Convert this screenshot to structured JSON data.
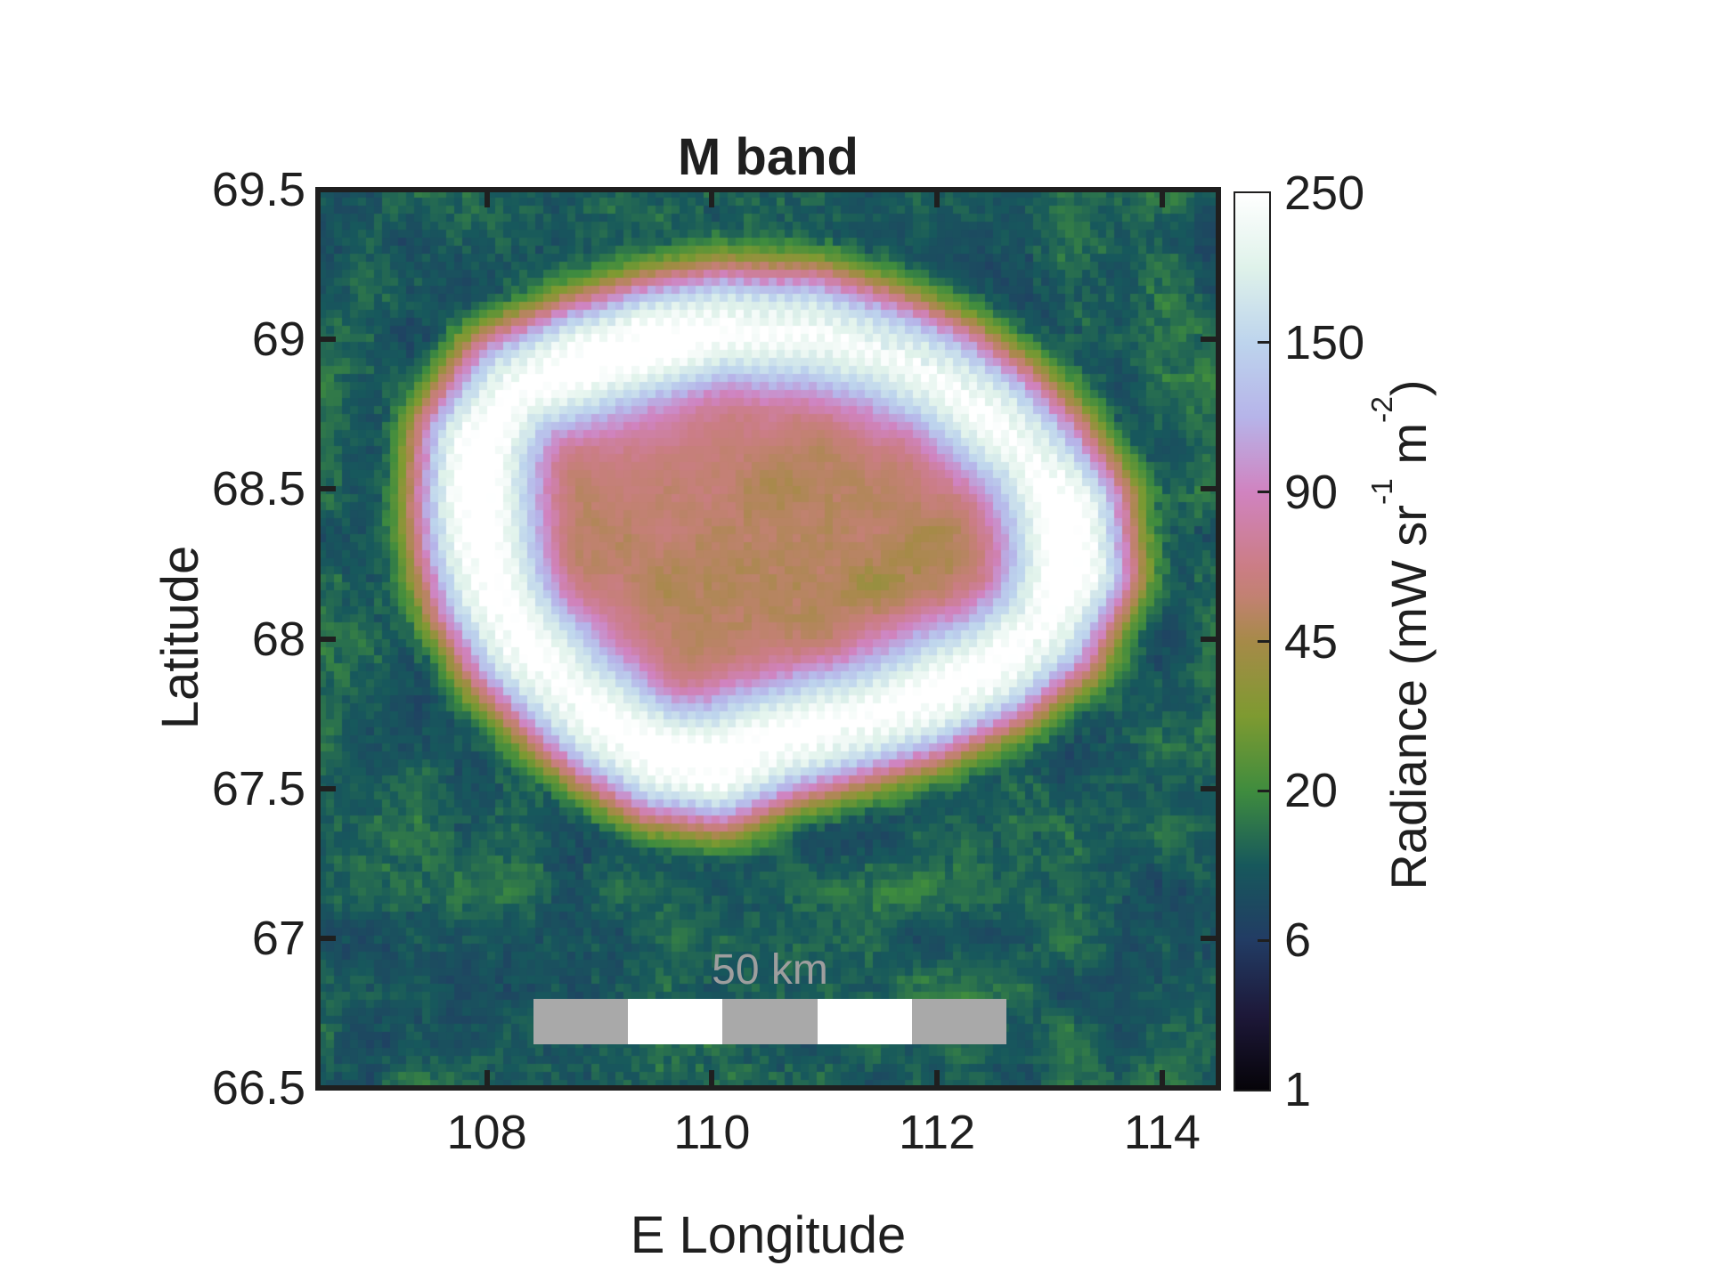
{
  "figure": {
    "background": "#ffffff"
  },
  "chart_data": {
    "type": "heatmap",
    "title": "M band",
    "xlabel": "E Longitude",
    "ylabel": "Latitude",
    "xlim": [
      106.5,
      114.5
    ],
    "ylim": [
      66.5,
      69.5
    ],
    "x_tick_values": [
      108,
      110,
      112,
      114
    ],
    "x_tick_labels": [
      "108",
      "110",
      "112",
      "114"
    ],
    "y_tick_values": [
      66.5,
      67,
      67.5,
      68,
      68.5,
      69,
      69.5
    ],
    "y_tick_labels": [
      "66.5",
      "67",
      "67.5",
      "68",
      "68.5",
      "69",
      "69.5"
    ],
    "colorbar": {
      "tick_values": [
        1,
        6,
        20,
        45,
        90,
        150,
        250
      ],
      "tick_labels": [
        "1",
        "6",
        "20",
        "45",
        "90",
        "150",
        "250"
      ],
      "scale": "nonlinear-even-tick-spacing",
      "label_parts": {
        "p1": "Radiance (mW sr",
        "s1": "-1",
        "p2": " m",
        "s2": "-2",
        "p3": ")"
      }
    },
    "colormap": [
      {
        "p": 0.0,
        "c": "#060409"
      },
      {
        "p": 0.083,
        "c": "#1d1839"
      },
      {
        "p": 0.167,
        "c": "#223c64"
      },
      {
        "p": 0.25,
        "c": "#17585c"
      },
      {
        "p": 0.333,
        "c": "#3f8c3e"
      },
      {
        "p": 0.417,
        "c": "#7e9a31"
      },
      {
        "p": 0.5,
        "c": "#a68a48"
      },
      {
        "p": 0.55,
        "c": "#c28172"
      },
      {
        "p": 0.583,
        "c": "#cb7d85"
      },
      {
        "p": 0.667,
        "c": "#d083c0"
      },
      {
        "p": 0.75,
        "c": "#b6b4e9"
      },
      {
        "p": 0.833,
        "c": "#bdd4ed"
      },
      {
        "p": 0.917,
        "c": "#dff2ea"
      },
      {
        "p": 1.0,
        "c": "#ffffff"
      }
    ],
    "field": {
      "grid_n": 112,
      "seed": 1337,
      "lon_compression": 0.374,
      "background": {
        "base": 14,
        "low_amp": 4.5,
        "fine_amp": 3.0,
        "stripe_amp": 1.6
      },
      "interior": {
        "base": 50,
        "center_boost": 8,
        "center_lon": 109.9,
        "center_lat": 68.5,
        "low_amp": 9,
        "fine_amp": 5,
        "stripe_amp": 1.5
      },
      "rim_sigma_out": 0.15,
      "rim_sigma_in": 0.19,
      "moat": {
        "amp": 6.5,
        "dist": 0.27,
        "sigma": 0.11
      },
      "rim_peak_radiance": 250
    },
    "rim_polygon": [
      [
        107.88,
        68.65,
        250
      ],
      [
        108.21,
        68.85,
        215
      ],
      [
        108.82,
        68.94,
        245
      ],
      [
        109.43,
        69.01,
        250
      ],
      [
        110.09,
        69.06,
        215
      ],
      [
        110.86,
        69.05,
        205
      ],
      [
        111.52,
        68.98,
        185
      ],
      [
        112.08,
        68.88,
        195
      ],
      [
        112.54,
        68.75,
        215
      ],
      [
        112.89,
        68.62,
        200
      ],
      [
        113.2,
        68.43,
        250
      ],
      [
        113.25,
        68.23,
        255
      ],
      [
        113.0,
        68.02,
        215
      ],
      [
        112.54,
        67.89,
        230
      ],
      [
        111.93,
        67.78,
        235
      ],
      [
        111.26,
        67.7,
        215
      ],
      [
        110.6,
        67.64,
        230
      ],
      [
        110.04,
        67.56,
        255
      ],
      [
        109.53,
        67.58,
        235
      ],
      [
        109.07,
        67.68,
        225
      ],
      [
        108.67,
        67.81,
        215
      ],
      [
        108.26,
        67.97,
        225
      ],
      [
        108.0,
        68.14,
        230
      ],
      [
        107.88,
        68.31,
        240
      ],
      [
        107.85,
        68.48,
        255
      ]
    ],
    "scale_bar": {
      "label": "50 km",
      "km": 50,
      "segments": [
        "#a9a9a9",
        "#ffffff",
        "#a9a9a9",
        "#ffffff",
        "#a9a9a9"
      ],
      "text_color": "#9e9e9e"
    }
  }
}
